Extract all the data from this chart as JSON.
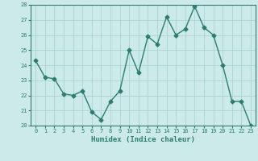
{
  "x": [
    0,
    1,
    2,
    3,
    4,
    5,
    6,
    7,
    8,
    9,
    10,
    11,
    12,
    13,
    14,
    15,
    16,
    17,
    18,
    19,
    20,
    21,
    22,
    23
  ],
  "y": [
    24.3,
    23.2,
    23.1,
    22.1,
    22.0,
    22.3,
    20.9,
    20.4,
    21.6,
    22.3,
    25.0,
    23.5,
    25.9,
    25.4,
    27.2,
    26.0,
    26.4,
    27.9,
    26.5,
    26.0,
    24.0,
    21.6,
    21.6,
    20.0
  ],
  "xlabel": "Humidex (Indice chaleur)",
  "ylim": [
    20,
    28
  ],
  "xlim": [
    -0.5,
    23.5
  ],
  "line_color": "#2e7d6e",
  "marker": "D",
  "marker_size": 2.5,
  "bg_color": "#cceaea",
  "grid_color": "#aad4d4",
  "tick_label_color": "#2e7d6e",
  "label_color": "#2e7d6e",
  "yticks": [
    20,
    21,
    22,
    23,
    24,
    25,
    26,
    27,
    28
  ],
  "xticks": [
    0,
    1,
    2,
    3,
    4,
    5,
    6,
    7,
    8,
    9,
    10,
    11,
    12,
    13,
    14,
    15,
    16,
    17,
    18,
    19,
    20,
    21,
    22,
    23
  ]
}
